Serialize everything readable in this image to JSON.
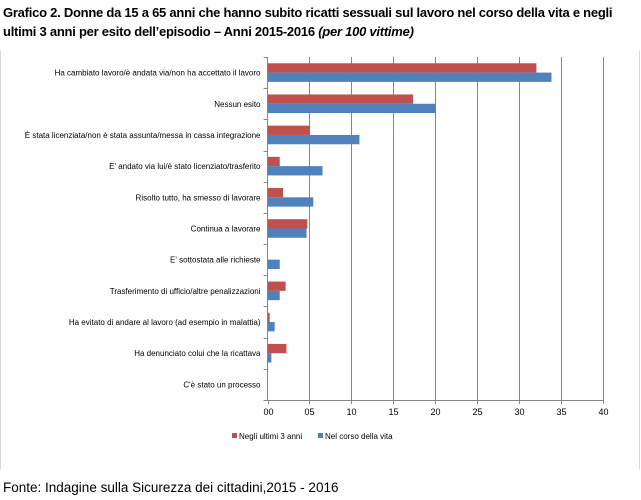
{
  "title": {
    "main": "Grafico 2. Donne da 15 a 65 anni che hanno subito ricatti sessuali sul lavoro nel corso della vita e negli ultimi 3 anni per esito dell’episodio – Anni 2015-2016 ",
    "unit": "(per 100 vittime)"
  },
  "source": "Fonte: Indagine sulla Sicurezza dei cittadini,2015 - 2016",
  "chart_data": {
    "type": "bar",
    "orientation": "horizontal",
    "categories": [
      "Ha cambiato lavoro/è andata via/non ha accettato il lavoro",
      "Nessun esito",
      "È stata licenziata/non è stata assunta/messa in cassa integrazione",
      "E' andato via lui/è stato licenziato/trasferito",
      "Risolto tutto, ha smesso di lavorare",
      "Continua a lavorare",
      "E' sottostata alle richieste",
      "Trasferimento di ufficio/altre penalizzazioni",
      "Ha evitato di andare al lavoro (ad esempio in malattia)",
      "Ha denunciato colui che la ricattava",
      "C'è stato un processo"
    ],
    "series": [
      {
        "name": "Negli ultimi 3 anni",
        "color": "#c0504d",
        "values": [
          32.0,
          17.3,
          5.0,
          1.4,
          1.8,
          4.7,
          0.0,
          2.1,
          0.2,
          2.2,
          0.0
        ]
      },
      {
        "name": "Nel corso della vita",
        "color": "#4f81bd",
        "values": [
          33.8,
          20.0,
          10.9,
          6.5,
          5.4,
          4.6,
          1.4,
          1.4,
          0.8,
          0.4,
          0.0
        ]
      }
    ],
    "xlim": [
      0,
      40
    ],
    "xticks": [
      0,
      5,
      10,
      15,
      20,
      25,
      30,
      35,
      40
    ],
    "xtick_labels": [
      "00",
      "05",
      "10",
      "15",
      "20",
      "25",
      "30",
      "35",
      "40"
    ],
    "grid": "vertical",
    "legend": "bottom"
  }
}
